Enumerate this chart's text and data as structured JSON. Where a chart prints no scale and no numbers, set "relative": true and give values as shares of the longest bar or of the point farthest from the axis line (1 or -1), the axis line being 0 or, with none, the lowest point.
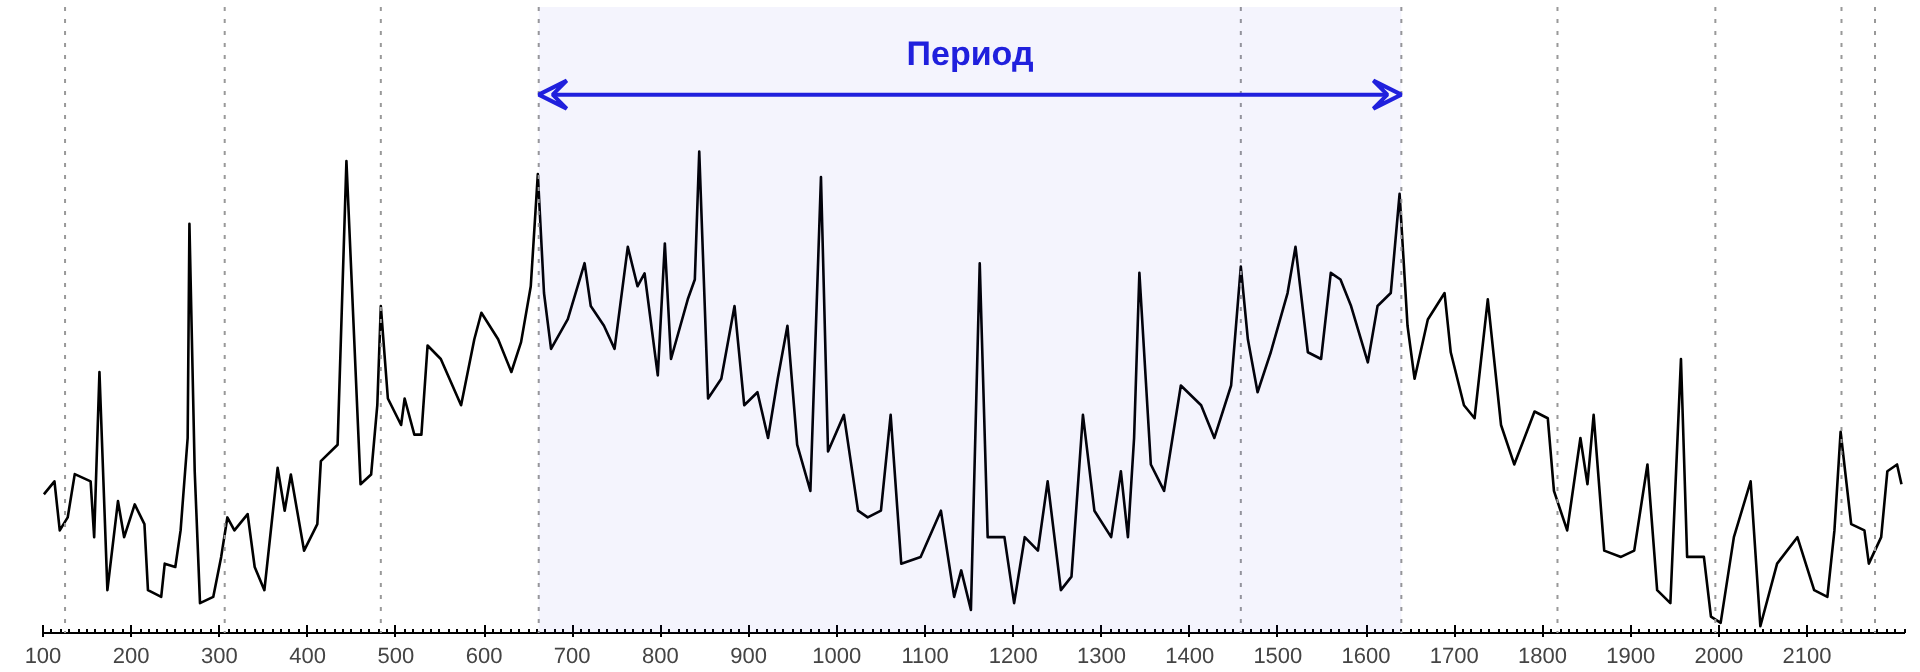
{
  "chart_data": {
    "type": "line",
    "relative": true,
    "xlim": [
      100,
      2211
    ],
    "xticks": [
      100,
      200,
      300,
      400,
      500,
      600,
      700,
      800,
      900,
      1000,
      1100,
      1200,
      1300,
      1400,
      1500,
      1600,
      1700,
      1800,
      1900,
      2000,
      2100
    ],
    "grid": false,
    "marker": "none",
    "line_style": "solid",
    "bands": [
      {
        "axis": "x",
        "from": 662,
        "to": 1640,
        "label": "Период",
        "color": "#2020dd"
      }
    ],
    "ref_lines": [
      {
        "axis": "x",
        "value": 125,
        "color": "#999999",
        "line_style": "dotted"
      },
      {
        "axis": "x",
        "value": 306,
        "color": "#999999",
        "line_style": "dotted"
      },
      {
        "axis": "x",
        "value": 483,
        "color": "#999999",
        "line_style": "dotted"
      },
      {
        "axis": "x",
        "value": 662,
        "color": "#999999",
        "line_style": "dotted"
      },
      {
        "axis": "x",
        "value": 1458,
        "color": "#999999",
        "line_style": "dotted"
      },
      {
        "axis": "x",
        "value": 1640,
        "color": "#999999",
        "line_style": "dotted"
      },
      {
        "axis": "x",
        "value": 1817,
        "color": "#999999",
        "line_style": "dotted"
      },
      {
        "axis": "x",
        "value": 1996,
        "color": "#999999",
        "line_style": "dotted"
      },
      {
        "axis": "x",
        "value": 2139,
        "color": "#999999",
        "line_style": "dotted"
      },
      {
        "axis": "x",
        "value": 2177,
        "color": "#999999",
        "line_style": "dotted"
      }
    ],
    "series": [
      {
        "color": "#000000",
        "x": [
          101,
          113,
          119,
          128,
          136,
          154,
          158,
          164,
          173,
          185,
          192,
          204,
          215,
          219,
          234,
          238,
          250,
          256,
          264,
          266,
          272,
          278,
          293,
          302,
          309,
          317,
          332,
          340,
          351,
          366,
          374,
          381,
          396,
          411,
          415,
          434,
          444,
          460,
          472,
          479,
          483,
          491,
          506,
          510,
          521,
          529,
          536,
          551,
          574,
          589,
          597,
          616,
          631,
          642,
          653,
          661,
          668,
          676,
          695,
          714,
          721,
          736,
          748,
          763,
          774,
          782,
          797,
          805,
          812,
          831,
          839,
          844,
          854,
          869,
          884,
          895,
          910,
          922,
          933,
          944,
          955,
          970,
          982,
          990,
          1008,
          1024,
          1035,
          1050,
          1061,
          1073,
          1095,
          1118,
          1133,
          1141,
          1152,
          1162,
          1171,
          1190,
          1201,
          1213,
          1228,
          1239,
          1254,
          1266,
          1279,
          1292,
          1311,
          1322,
          1330,
          1337,
          1343,
          1356,
          1371,
          1390,
          1413,
          1428,
          1447,
          1458,
          1466,
          1477,
          1492,
          1511,
          1520,
          1534,
          1549,
          1560,
          1571,
          1583,
          1602,
          1613,
          1628,
          1638,
          1647,
          1655,
          1670,
          1689,
          1696,
          1711,
          1723,
          1738,
          1753,
          1768,
          1791,
          1806,
          1813,
          1828,
          1843,
          1851,
          1858,
          1870,
          1889,
          1904,
          1919,
          1930,
          1945,
          1957,
          1964,
          1983,
          1991,
          2002,
          2017,
          2036,
          2047,
          2066,
          2089,
          2108,
          2123,
          2131,
          2138,
          2150,
          2165,
          2170,
          2184,
          2191,
          2202,
          2207
        ],
        "values": [
          0.288,
          0.315,
          0.213,
          0.24,
          0.33,
          0.315,
          0.199,
          0.542,
          0.089,
          0.274,
          0.199,
          0.267,
          0.226,
          0.089,
          0.075,
          0.144,
          0.137,
          0.213,
          0.405,
          0.85,
          0.336,
          0.062,
          0.075,
          0.158,
          0.24,
          0.213,
          0.247,
          0.137,
          0.089,
          0.343,
          0.254,
          0.329,
          0.171,
          0.226,
          0.357,
          0.391,
          0.98,
          0.309,
          0.329,
          0.473,
          0.679,
          0.487,
          0.432,
          0.487,
          0.412,
          0.412,
          0.597,
          0.569,
          0.473,
          0.61,
          0.665,
          0.61,
          0.542,
          0.604,
          0.72,
          0.953,
          0.706,
          0.59,
          0.652,
          0.768,
          0.679,
          0.638,
          0.59,
          0.802,
          0.72,
          0.747,
          0.535,
          0.809,
          0.569,
          0.693,
          0.734,
          1.0,
          0.487,
          0.528,
          0.679,
          0.473,
          0.5,
          0.405,
          0.528,
          0.638,
          0.391,
          0.295,
          0.947,
          0.377,
          0.453,
          0.254,
          0.24,
          0.254,
          0.453,
          0.144,
          0.158,
          0.254,
          0.075,
          0.13,
          0.048,
          0.768,
          0.199,
          0.199,
          0.062,
          0.199,
          0.171,
          0.315,
          0.089,
          0.117,
          0.453,
          0.254,
          0.199,
          0.336,
          0.199,
          0.405,
          0.748,
          0.35,
          0.295,
          0.514,
          0.473,
          0.405,
          0.514,
          0.761,
          0.61,
          0.5,
          0.583,
          0.706,
          0.802,
          0.583,
          0.569,
          0.748,
          0.734,
          0.679,
          0.562,
          0.679,
          0.706,
          0.912,
          0.638,
          0.528,
          0.651,
          0.706,
          0.583,
          0.473,
          0.446,
          0.693,
          0.432,
          0.35,
          0.46,
          0.446,
          0.295,
          0.213,
          0.405,
          0.309,
          0.453,
          0.171,
          0.158,
          0.171,
          0.35,
          0.089,
          0.062,
          0.569,
          0.158,
          0.158,
          0.034,
          0.021,
          0.199,
          0.315,
          0.014,
          0.144,
          0.199,
          0.089,
          0.075,
          0.213,
          0.418,
          0.226,
          0.213,
          0.144,
          0.199,
          0.336,
          0.35,
          0.309
        ]
      }
    ]
  }
}
